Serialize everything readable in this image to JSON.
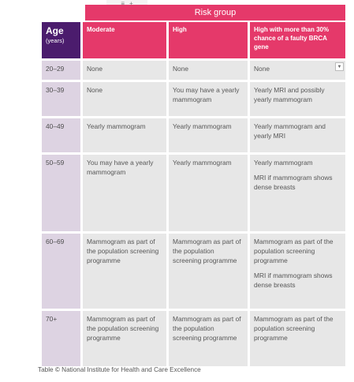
{
  "toolbar": {
    "icon_lines": "≡",
    "icon_plus": "+"
  },
  "risk_group_label": "Risk group",
  "header": {
    "age": "Age",
    "age_unit": "(years)",
    "moderate": "Moderate",
    "high": "High",
    "very_high": "High with more than 30% chance of a faulty BRCA gene"
  },
  "rows": [
    {
      "age": "20–29",
      "moderate": [
        "None"
      ],
      "high": [
        "None"
      ],
      "very_high": [
        "None"
      ]
    },
    {
      "age": "30–39",
      "moderate": [
        "None"
      ],
      "high": [
        "You may have a yearly mammogram"
      ],
      "very_high": [
        "Yearly MRI and possibly yearly mammogram"
      ]
    },
    {
      "age": "40–49",
      "moderate": [
        "Yearly mammogram"
      ],
      "high": [
        "Yearly mammogram"
      ],
      "very_high": [
        "Yearly mammogram and yearly MRI"
      ]
    },
    {
      "age": "50–59",
      "moderate": [
        "You may have a yearly mammogram"
      ],
      "high": [
        "Yearly mammogram"
      ],
      "very_high": [
        "Yearly mammogram",
        "MRI if mammogram shows dense breasts"
      ]
    },
    {
      "age": "60–69",
      "moderate": [
        "Mammogram as part of the population screening programme"
      ],
      "high": [
        "Mammogram as part of the population screening programme"
      ],
      "very_high": [
        "Mammogram as part of the population screening programme",
        "MRI if mammogram shows dense breasts"
      ]
    },
    {
      "age": "70+",
      "moderate": [
        "Mammogram as part of the population screening programme"
      ],
      "high": [
        "Mammogram as part of the population screening programme"
      ],
      "very_high": [
        "Mammogram as part of the population screening programme"
      ]
    }
  ],
  "caption": "Table © National Institute for Health and Care Excellence"
}
